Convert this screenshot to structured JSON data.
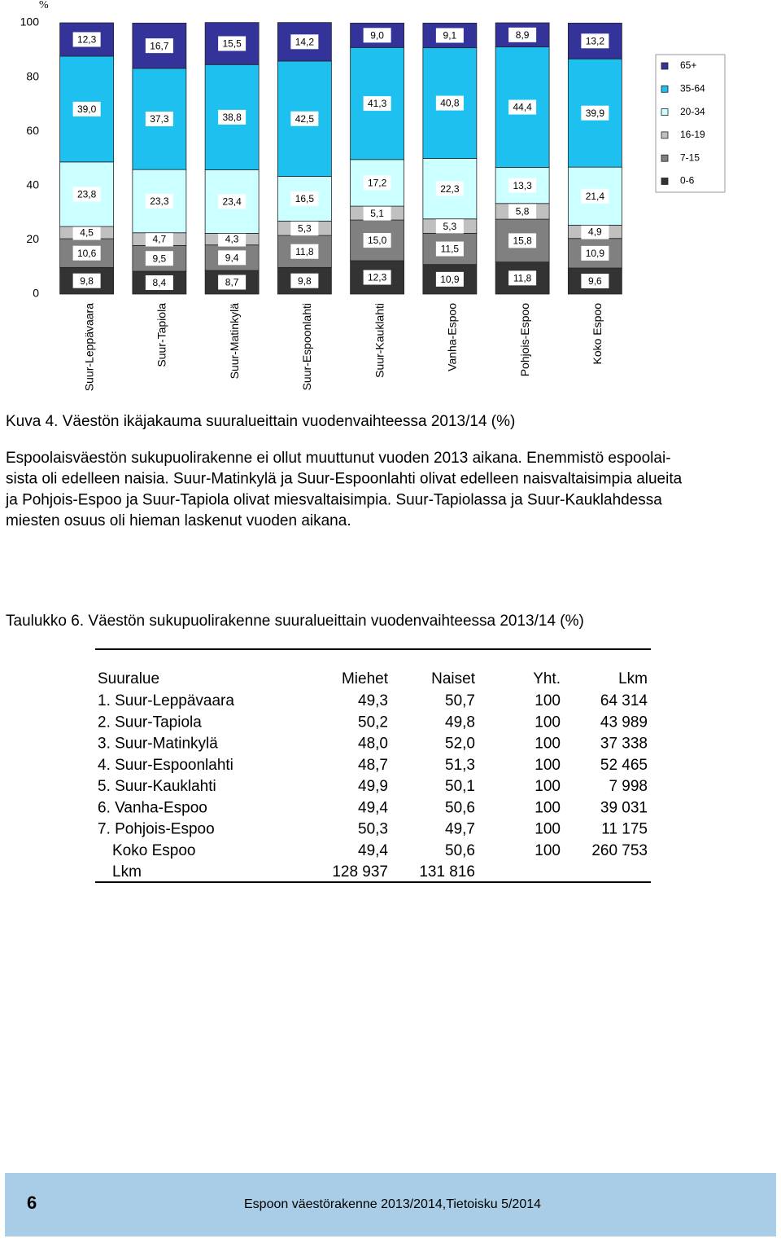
{
  "chart_data": {
    "type": "stacked_bar",
    "y_unit": "%",
    "categories": [
      "Suur-Leppävaara",
      "Suur-Tapiola",
      "Suur-Matinkylä",
      "Suur-Espoonlahti",
      "Suur-Kauklahti",
      "Vanha-Espoo",
      "Pohjois-Espoo",
      "Koko Espoo"
    ],
    "series": [
      {
        "name": "0-6",
        "color": "#333333",
        "values": [
          9.8,
          8.4,
          8.7,
          9.8,
          12.3,
          10.9,
          11.8,
          9.6
        ],
        "value_labels": [
          "9,8",
          "8,4",
          "8,7",
          "9,8",
          "12,3",
          "10,9",
          "11,8",
          "9,6"
        ]
      },
      {
        "name": "7-15",
        "color": "#808080",
        "values": [
          10.6,
          9.5,
          9.4,
          11.8,
          15.0,
          11.5,
          15.8,
          10.9
        ],
        "value_labels": [
          "10,6",
          "9,5",
          "9,4",
          "11,8",
          "15,0",
          "11,5",
          "15,8",
          "10,9"
        ]
      },
      {
        "name": "16-19",
        "color": "#c0c0c0",
        "values": [
          4.5,
          4.7,
          4.3,
          5.3,
          5.1,
          5.3,
          5.8,
          4.9
        ],
        "value_labels": [
          "4,5",
          "4,7",
          "4,3",
          "5,3",
          "5,1",
          "5,3",
          "5,8",
          "4,9"
        ]
      },
      {
        "name": "20-34",
        "color": "#ccffff",
        "values": [
          23.8,
          23.3,
          23.4,
          16.5,
          17.2,
          22.3,
          13.3,
          21.4
        ],
        "value_labels": [
          "23,8",
          "23,3",
          "23,4",
          "16,5",
          "17,2",
          "22,3",
          "13,3",
          "21,4"
        ]
      },
      {
        "name": "35-64",
        "color": "#1ec0f0",
        "values": [
          39.0,
          37.3,
          38.8,
          42.5,
          41.3,
          40.8,
          44.4,
          39.9
        ],
        "value_labels": [
          "39,0",
          "37,3",
          "38,8",
          "42,5",
          "41,3",
          "40,8",
          "44,4",
          "39,9"
        ]
      },
      {
        "name": "65+",
        "color": "#333399",
        "values": [
          12.3,
          16.7,
          15.5,
          14.2,
          9.0,
          9.1,
          8.9,
          13.2
        ],
        "value_labels": [
          "12,3",
          "16,7",
          "15,5",
          "14,2",
          "9,0",
          "9,1",
          "8,9",
          "13,2"
        ]
      }
    ],
    "ylim": [
      0,
      100
    ],
    "yticks": [
      0,
      20,
      40,
      60,
      80,
      100
    ],
    "legend": "right"
  },
  "caption": "Kuva 4. Väestön ikäjakauma suuralueittain vuodenvaihteessa 2013/14 (%)",
  "paragraph": [
    "Espoolaisväestön sukupuolirakenne ei ollut muuttunut vuoden 2013 aikana. Enemmistö espoolai-",
    "sista oli edelleen naisia. Suur-Matinkylä ja Suur-Espoonlahti olivat edelleen naisvaltaisimpia alueita",
    "ja Pohjois-Espoo  ja Suur-Tapiola olivat miesvaltaisimpia. Suur-Tapiolassa ja Suur-Kauklahdessa",
    "miesten osuus oli hieman laskenut vuoden aikana."
  ],
  "table": {
    "title": "Taulukko 6. Väestön sukupuolirakenne suuralueittain vuodenvaihteessa 2013/14 (%)",
    "header": [
      "Suuralue",
      "Miehet",
      "Naiset",
      "Yht.",
      "Lkm"
    ],
    "rows": [
      [
        "1. Suur-Leppävaara",
        "49,3",
        "50,7",
        "100",
        "64 314"
      ],
      [
        "2. Suur-Tapiola",
        "50,2",
        "49,8",
        "100",
        "43 989"
      ],
      [
        "3. Suur-Matinkylä",
        "48,0",
        "52,0",
        "100",
        "37 338"
      ],
      [
        "4. Suur-Espoonlahti",
        "48,7",
        "51,3",
        "100",
        "52 465"
      ],
      [
        "5. Suur-Kauklahti",
        "49,9",
        "50,1",
        "100",
        "7 998"
      ],
      [
        "6. Vanha-Espoo",
        "49,4",
        "50,6",
        "100",
        "39 031"
      ],
      [
        "7. Pohjois-Espoo",
        "50,3",
        "49,7",
        "100",
        "11 175"
      ],
      [
        "Koko Espoo",
        "49,4",
        "50,6",
        "100",
        "260 753"
      ],
      [
        "Lkm",
        "128 937",
        "131 816"
      ]
    ]
  },
  "footer": {
    "page": "6",
    "text": "Espoon väestörakenne 2013/2014,Tietoisku 5/2014"
  }
}
